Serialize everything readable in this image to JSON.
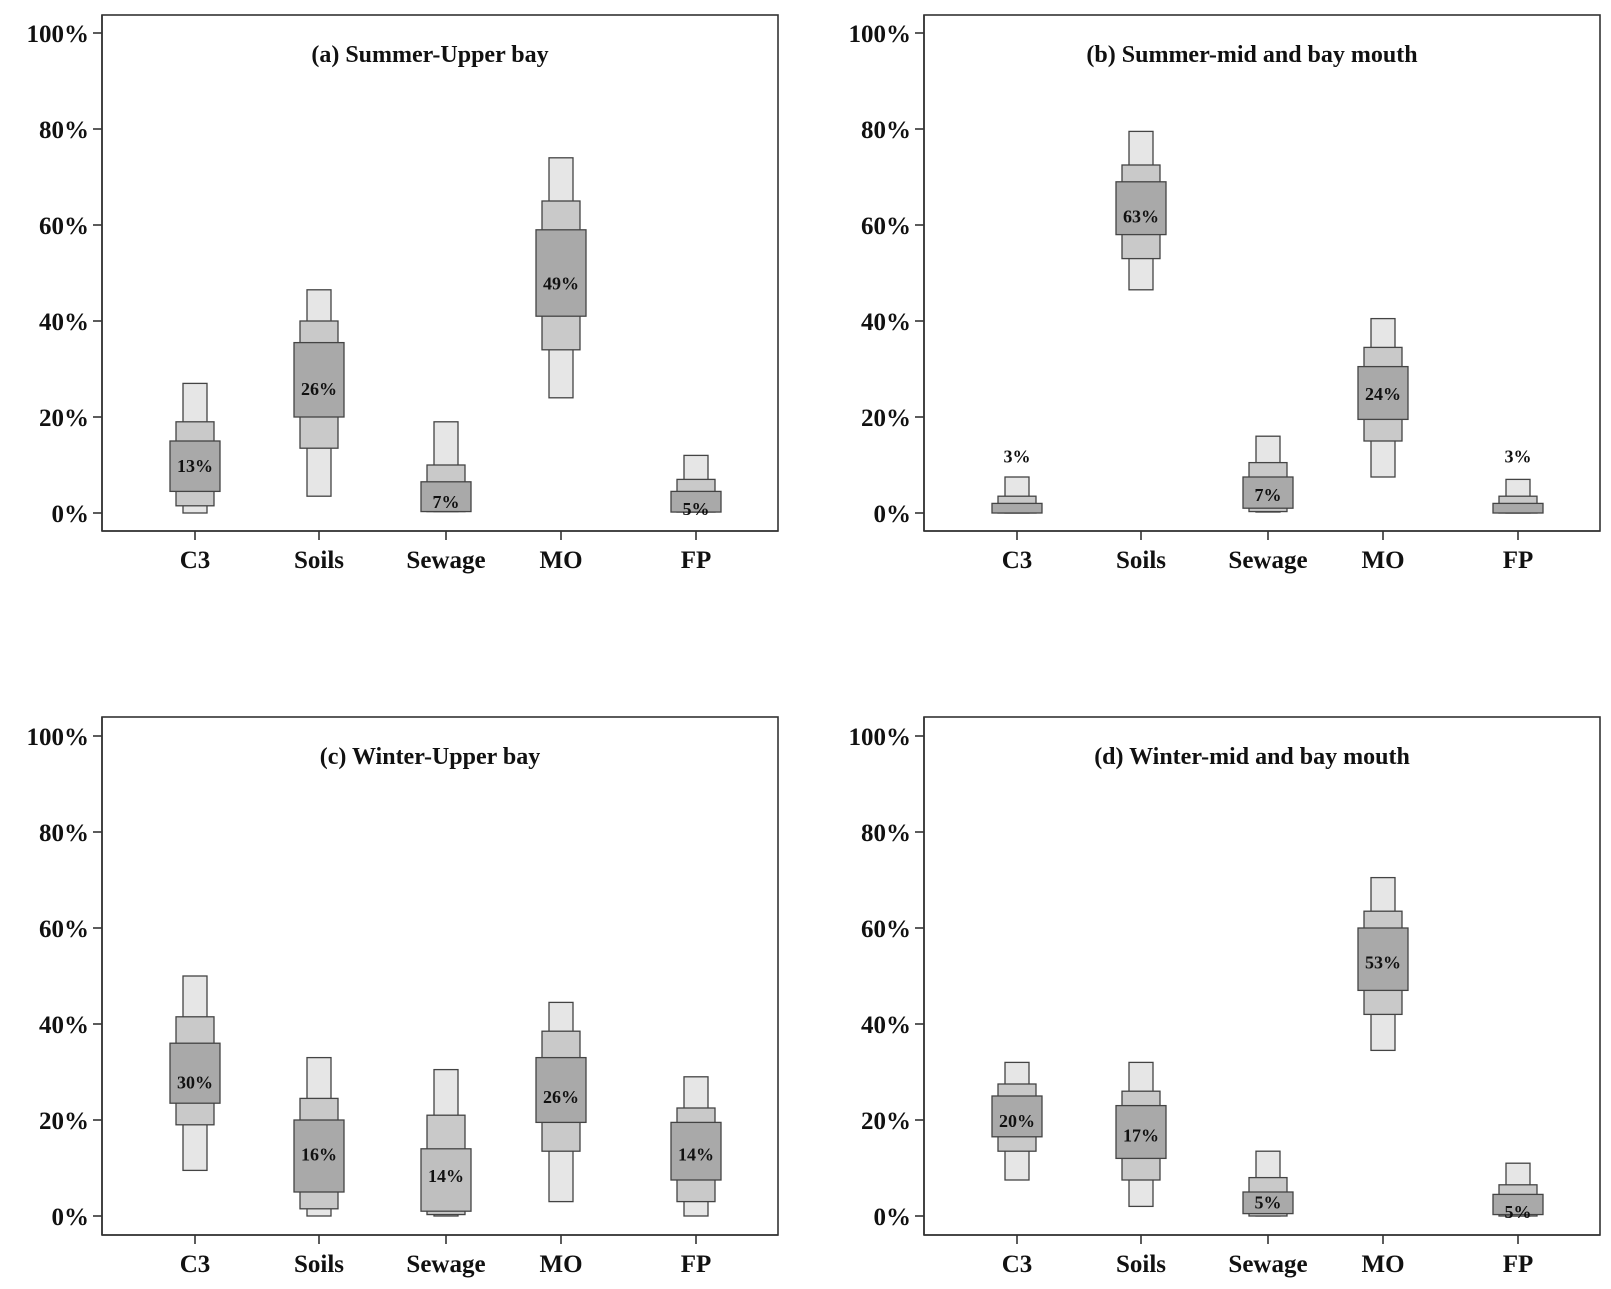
{
  "colors": {
    "ci95": "#e6e6e6",
    "ci75": "#c9c9c9",
    "ci50": "#a9a9a9",
    "outline": "#444444",
    "highlight": "#bfbfbf"
  },
  "chart_data": [
    {
      "type": "box",
      "title": "(a) Summer-Upper bay",
      "xlabel": "",
      "ylabel": "",
      "ylim": [
        0,
        100
      ],
      "yticks": [
        "0%",
        "20%",
        "40%",
        "60%",
        "80%",
        "100%"
      ],
      "categories": [
        "C3",
        "Soils",
        "Sewage",
        "MO",
        "FP"
      ],
      "boxes": [
        {
          "ci95": [
            0,
            27
          ],
          "ci75": [
            1.5,
            19
          ],
          "ci50": [
            4.5,
            15
          ],
          "label": "13%",
          "label_y": 10
        },
        {
          "ci95": [
            3.5,
            46.5
          ],
          "ci75": [
            13.5,
            40
          ],
          "ci50": [
            20,
            35.5
          ],
          "label": "26%",
          "label_y": 26
        },
        {
          "ci95": [
            0.3,
            19
          ],
          "ci75": [
            0.3,
            10
          ],
          "ci50": [
            0.3,
            6.5
          ],
          "label": "7%",
          "label_y": 2.5
        },
        {
          "ci95": [
            24,
            74
          ],
          "ci75": [
            34,
            65
          ],
          "ci50": [
            41,
            59
          ],
          "label": "49%",
          "label_y": 48
        },
        {
          "ci95": [
            0.2,
            12
          ],
          "ci75": [
            0.2,
            7
          ],
          "ci50": [
            0.2,
            4.5
          ],
          "label": "5%",
          "label_y": 1
        }
      ]
    },
    {
      "type": "box",
      "title": "(b) Summer-mid and bay mouth",
      "xlabel": "",
      "ylabel": "",
      "ylim": [
        0,
        100
      ],
      "yticks": [
        "0%",
        "20%",
        "40%",
        "60%",
        "80%",
        "100%"
      ],
      "categories": [
        "C3",
        "Soils",
        "Sewage",
        "MO",
        "FP"
      ],
      "boxes": [
        {
          "ci95": [
            0,
            7.5
          ],
          "ci75": [
            0,
            3.5
          ],
          "ci50": [
            0,
            2
          ],
          "label": "3%",
          "label_y": 12
        },
        {
          "ci95": [
            46.5,
            79.5
          ],
          "ci75": [
            53,
            72.5
          ],
          "ci50": [
            58,
            69
          ],
          "label": "63%",
          "label_y": 62
        },
        {
          "ci95": [
            0.2,
            16
          ],
          "ci75": [
            0.3,
            10.5
          ],
          "ci50": [
            1,
            7.5
          ],
          "label": "7%",
          "label_y": 4
        },
        {
          "ci95": [
            7.5,
            40.5
          ],
          "ci75": [
            15,
            34.5
          ],
          "ci50": [
            19.5,
            30.5
          ],
          "label": "24%",
          "label_y": 25
        },
        {
          "ci95": [
            0,
            7
          ],
          "ci75": [
            0,
            3.5
          ],
          "ci50": [
            0,
            2
          ],
          "label": "3%",
          "label_y": 12
        }
      ]
    },
    {
      "type": "box",
      "title": "(c) Winter-Upper bay",
      "xlabel": "",
      "ylabel": "",
      "ylim": [
        0,
        100
      ],
      "yticks": [
        "0%",
        "20%",
        "40%",
        "60%",
        "80%",
        "100%"
      ],
      "categories": [
        "C3",
        "Soils",
        "Sewage",
        "MO",
        "FP"
      ],
      "boxes": [
        {
          "ci95": [
            9.5,
            50
          ],
          "ci75": [
            19,
            41.5
          ],
          "ci50": [
            23.5,
            36
          ],
          "label": "30%",
          "label_y": 28
        },
        {
          "ci95": [
            0,
            33
          ],
          "ci75": [
            1.5,
            24.5
          ],
          "ci50": [
            5,
            20
          ],
          "label": "16%",
          "label_y": 13
        },
        {
          "ci95": [
            0,
            30.5
          ],
          "ci75": [
            0.3,
            21
          ],
          "ci50": [
            1,
            14
          ],
          "label": "14%",
          "label_y": 8.5,
          "highlight": true
        },
        {
          "ci95": [
            3,
            44.5
          ],
          "ci75": [
            13.5,
            38.5
          ],
          "ci50": [
            19.5,
            33
          ],
          "label": "26%",
          "label_y": 25
        },
        {
          "ci95": [
            0,
            29
          ],
          "ci75": [
            3,
            22.5
          ],
          "ci50": [
            7.5,
            19.5
          ],
          "label": "14%",
          "label_y": 13
        }
      ]
    },
    {
      "type": "box",
      "title": "(d) Winter-mid and bay mouth",
      "xlabel": "",
      "ylabel": "",
      "ylim": [
        0,
        100
      ],
      "yticks": [
        "0%",
        "20%",
        "40%",
        "60%",
        "80%",
        "100%"
      ],
      "categories": [
        "C3",
        "Soils",
        "Sewage",
        "MO",
        "FP"
      ],
      "boxes": [
        {
          "ci95": [
            7.5,
            32
          ],
          "ci75": [
            13.5,
            27.5
          ],
          "ci50": [
            16.5,
            25
          ],
          "label": "20%",
          "label_y": 20
        },
        {
          "ci95": [
            2,
            32
          ],
          "ci75": [
            7.5,
            26
          ],
          "ci50": [
            12,
            23
          ],
          "label": "17%",
          "label_y": 17
        },
        {
          "ci95": [
            0,
            13.5
          ],
          "ci75": [
            0,
            8
          ],
          "ci50": [
            0.5,
            5
          ],
          "label": "5%",
          "label_y": 3
        },
        {
          "ci95": [
            34.5,
            70.5
          ],
          "ci75": [
            42,
            63.5
          ],
          "ci50": [
            47,
            60
          ],
          "label": "53%",
          "label_y": 53
        },
        {
          "ci95": [
            0,
            11
          ],
          "ci75": [
            0,
            6.5
          ],
          "ci50": [
            0.3,
            4.5
          ],
          "label": "5%",
          "label_y": 1
        }
      ]
    }
  ]
}
